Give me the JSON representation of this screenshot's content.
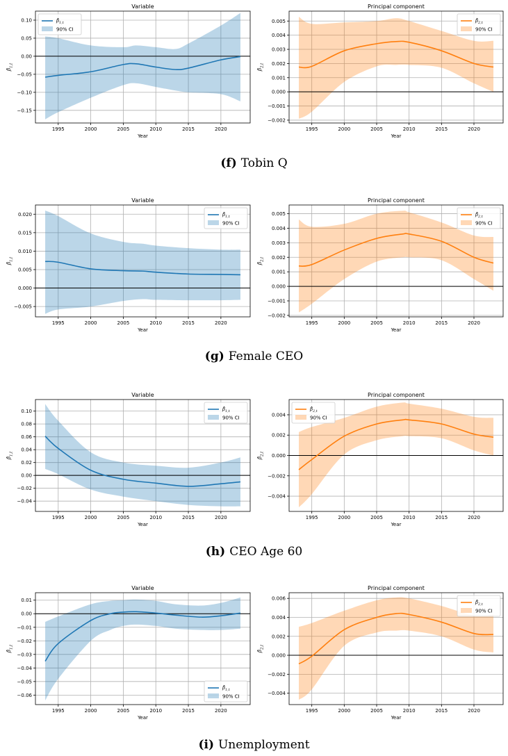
{
  "panels": [
    {
      "caption": {
        "letter": "(f)",
        "text": "Tobin Q"
      },
      "charts": [
        {
          "type": "line",
          "title": "Variable",
          "xlabel": "Year",
          "ylabel": "β̂1,t",
          "legend": "β̂1,t",
          "ci_legend": "90% CI",
          "color": "#1f77b4",
          "legend_loc": "upper-left",
          "xlim": [
            1991.5,
            2024.5
          ],
          "ylim": [
            -0.185,
            0.125
          ],
          "xticks": [
            1995,
            2000,
            2005,
            2010,
            2015,
            2020
          ],
          "yticks": [
            -0.15,
            -0.1,
            -0.05,
            0.0,
            0.05,
            0.1
          ],
          "ytick_labels": [
            "−0.15",
            "−0.10",
            "−0.05",
            "0.00",
            "0.05",
            "0.10"
          ],
          "x": [
            1993,
            1995,
            2000,
            2005,
            2007,
            2010,
            2013,
            2015,
            2020,
            2023
          ],
          "y": [
            -0.058,
            -0.053,
            -0.043,
            -0.023,
            -0.021,
            -0.03,
            -0.037,
            -0.033,
            -0.01,
            -0.001
          ],
          "lower": [
            -0.175,
            -0.155,
            -0.115,
            -0.08,
            -0.075,
            -0.085,
            -0.095,
            -0.1,
            -0.105,
            -0.125
          ],
          "upper": [
            0.055,
            0.05,
            0.03,
            0.025,
            0.03,
            0.025,
            0.02,
            0.035,
            0.085,
            0.12
          ]
        },
        {
          "type": "line",
          "title": "Principal component",
          "xlabel": "Year",
          "ylabel": "β̂2,t",
          "legend": "β̂2,t",
          "ci_legend": "90% CI",
          "color": "#ff7f0e",
          "legend_loc": "upper-right",
          "xlim": [
            1991.5,
            2024.5
          ],
          "ylim": [
            -0.0022,
            0.0057
          ],
          "xticks": [
            1995,
            2000,
            2005,
            2010,
            2015,
            2020
          ],
          "yticks": [
            -0.002,
            -0.001,
            0.0,
            0.001,
            0.002,
            0.003,
            0.004,
            0.005
          ],
          "ytick_labels": [
            "−0.002",
            "−0.001",
            "0.000",
            "0.001",
            "0.002",
            "0.003",
            "0.004",
            "0.005"
          ],
          "x": [
            1993,
            1995,
            2000,
            2005,
            2008,
            2010,
            2015,
            2020,
            2023
          ],
          "y": [
            0.00175,
            0.0018,
            0.0029,
            0.0034,
            0.00355,
            0.0035,
            0.0029,
            0.002,
            0.00175
          ],
          "lower": [
            -0.0019,
            -0.0014,
            0.0007,
            0.0018,
            0.0019,
            0.0019,
            0.0017,
            0.0006,
            0.0
          ],
          "upper": [
            0.0053,
            0.0048,
            0.0049,
            0.005,
            0.0052,
            0.005,
            0.0043,
            0.0036,
            0.0036
          ]
        }
      ]
    },
    {
      "caption": {
        "letter": "(g)",
        "text": "Female CEO"
      },
      "charts": [
        {
          "type": "line",
          "title": "Variable",
          "xlabel": "Year",
          "ylabel": "β̂1,t",
          "legend": "β̂1,t",
          "ci_legend": "90% CI",
          "color": "#1f77b4",
          "legend_loc": "upper-right",
          "xlim": [
            1991.5,
            2024.5
          ],
          "ylim": [
            -0.0078,
            0.0225
          ],
          "xticks": [
            1995,
            2000,
            2005,
            2010,
            2015,
            2020
          ],
          "yticks": [
            -0.005,
            0.0,
            0.005,
            0.01,
            0.015,
            0.02
          ],
          "ytick_labels": [
            "−0.005",
            "0.000",
            "0.005",
            "0.010",
            "0.015",
            "0.020"
          ],
          "x": [
            1993,
            1995,
            2000,
            2005,
            2008,
            2010,
            2015,
            2020,
            2023
          ],
          "y": [
            0.0072,
            0.007,
            0.0052,
            0.0047,
            0.0046,
            0.0043,
            0.0038,
            0.0037,
            0.0036
          ],
          "lower": [
            -0.007,
            -0.0058,
            -0.005,
            -0.0035,
            -0.003,
            -0.0032,
            -0.0033,
            -0.0033,
            -0.0032
          ],
          "upper": [
            0.021,
            0.0195,
            0.0148,
            0.0125,
            0.012,
            0.0115,
            0.0108,
            0.0104,
            0.0104
          ]
        },
        {
          "type": "line",
          "title": "Principal component",
          "xlabel": "Year",
          "ylabel": "β̂2,t",
          "legend": "β̂2,t",
          "ci_legend": "90% CI",
          "color": "#ff7f0e",
          "legend_loc": "upper-right",
          "xlim": [
            1991.5,
            2024.5
          ],
          "ylim": [
            -0.0021,
            0.0056
          ],
          "xticks": [
            1995,
            2000,
            2005,
            2010,
            2015,
            2020
          ],
          "yticks": [
            -0.002,
            -0.001,
            0.0,
            0.001,
            0.002,
            0.003,
            0.004,
            0.005
          ],
          "ytick_labels": [
            "−0.002",
            "−0.001",
            "0.000",
            "0.001",
            "0.002",
            "0.003",
            "0.004",
            "0.005"
          ],
          "x": [
            1993,
            1995,
            2000,
            2005,
            2009,
            2010,
            2015,
            2020,
            2023
          ],
          "y": [
            0.0014,
            0.0015,
            0.0025,
            0.0033,
            0.0036,
            0.0036,
            0.0031,
            0.002,
            0.0016
          ],
          "lower": [
            -0.0018,
            -0.0012,
            0.0005,
            0.0017,
            0.002,
            0.002,
            0.0018,
            0.0005,
            -0.0003
          ],
          "upper": [
            0.0046,
            0.0041,
            0.0043,
            0.005,
            0.0052,
            0.0051,
            0.0044,
            0.0035,
            0.0034
          ]
        }
      ]
    },
    {
      "caption": {
        "letter": "(h)",
        "text": "CEO Age 60"
      },
      "charts": [
        {
          "type": "line",
          "title": "Variable",
          "xlabel": "Year",
          "ylabel": "β̂1,t",
          "legend": "β̂1,t",
          "ci_legend": "90% CI",
          "color": "#1f77b4",
          "legend_loc": "upper-right",
          "xlim": [
            1991.5,
            2024.5
          ],
          "ylim": [
            -0.056,
            0.118
          ],
          "xticks": [
            1995,
            2000,
            2005,
            2010,
            2015,
            2020
          ],
          "yticks": [
            -0.04,
            -0.02,
            0.0,
            0.02,
            0.04,
            0.06,
            0.08,
            0.1
          ],
          "ytick_labels": [
            "−0.04",
            "−0.02",
            "0.00",
            "0.02",
            "0.04",
            "0.06",
            "0.08",
            "0.10"
          ],
          "x": [
            1993,
            1995,
            2000,
            2005,
            2010,
            2015,
            2020,
            2023
          ],
          "y": [
            0.061,
            0.042,
            0.008,
            -0.006,
            -0.012,
            -0.017,
            -0.013,
            -0.01
          ],
          "lower": [
            0.01,
            0.002,
            -0.022,
            -0.033,
            -0.04,
            -0.046,
            -0.048,
            -0.048
          ],
          "upper": [
            0.111,
            0.085,
            0.036,
            0.02,
            0.015,
            0.012,
            0.02,
            0.028
          ]
        },
        {
          "type": "line",
          "title": "Principal component",
          "xlabel": "Year",
          "ylabel": "β̂2,t",
          "legend": "β̂2,t",
          "ci_legend": "90% CI",
          "color": "#ff7f0e",
          "legend_loc": "upper-left",
          "xlim": [
            1991.5,
            2024.5
          ],
          "ylim": [
            -0.0055,
            0.0055
          ],
          "xticks": [
            1995,
            2000,
            2005,
            2010,
            2015,
            2020
          ],
          "yticks": [
            -0.004,
            -0.002,
            0.0,
            0.002,
            0.004
          ],
          "ytick_labels": [
            "−0.004",
            "−0.002",
            "0.000",
            "0.002",
            "0.004"
          ],
          "x": [
            1993,
            1995,
            2000,
            2005,
            2009,
            2010,
            2015,
            2020,
            2023
          ],
          "y": [
            -0.0014,
            -0.0004,
            0.0019,
            0.0031,
            0.0035,
            0.0035,
            0.0031,
            0.0021,
            0.0018
          ],
          "lower": [
            -0.0051,
            -0.0038,
            0.0001,
            0.0015,
            0.0019,
            0.0019,
            0.0017,
            0.0005,
            0.0
          ],
          "upper": [
            0.0023,
            0.0028,
            0.0037,
            0.0048,
            0.0052,
            0.0051,
            0.0046,
            0.0038,
            0.0037
          ]
        }
      ]
    },
    {
      "caption": {
        "letter": "(i)",
        "text": "Unemployment"
      },
      "charts": [
        {
          "type": "line",
          "title": "Variable",
          "xlabel": "Year",
          "ylabel": "β̂1,t",
          "legend": "β̂1,t",
          "ci_legend": "90% CI",
          "color": "#1f77b4",
          "legend_loc": "lower-right",
          "xlim": [
            1991.5,
            2024.5
          ],
          "ylim": [
            -0.067,
            0.0155
          ],
          "xticks": [
            1995,
            2000,
            2005,
            2010,
            2015,
            2020
          ],
          "yticks": [
            -0.06,
            -0.05,
            -0.04,
            -0.03,
            -0.02,
            -0.01,
            0.0,
            0.01
          ],
          "ytick_labels": [
            "−0.06",
            "−0.05",
            "−0.04",
            "−0.03",
            "−0.02",
            "−0.01",
            "0.00",
            "0.01"
          ],
          "x": [
            1993,
            1995,
            2000,
            2003,
            2005,
            2007,
            2010,
            2013,
            2017,
            2020,
            2023
          ],
          "y": [
            -0.035,
            -0.022,
            -0.005,
            0.0,
            0.0012,
            0.0015,
            0.0005,
            -0.001,
            -0.0025,
            -0.0015,
            0.0005
          ],
          "lower": [
            -0.064,
            -0.048,
            -0.02,
            -0.012,
            -0.009,
            -0.008,
            -0.009,
            -0.011,
            -0.012,
            -0.012,
            -0.011
          ],
          "upper": [
            -0.006,
            -0.002,
            0.007,
            0.0095,
            0.01,
            0.0105,
            0.0095,
            0.007,
            0.006,
            0.008,
            0.012
          ]
        },
        {
          "type": "line",
          "title": "Principal component",
          "xlabel": "Year",
          "ylabel": "β̂2,t",
          "legend": "β̂2,t",
          "ci_legend": "90% CI",
          "color": "#ff7f0e",
          "legend_loc": "upper-right",
          "xlim": [
            1991.5,
            2024.5
          ],
          "ylim": [
            -0.0052,
            0.0066
          ],
          "xticks": [
            1995,
            2000,
            2005,
            2010,
            2015,
            2020
          ],
          "yticks": [
            -0.004,
            -0.002,
            0.0,
            0.002,
            0.004,
            0.006
          ],
          "ytick_labels": [
            "−0.004",
            "−0.002",
            "0.000",
            "0.002",
            "0.004",
            "0.006"
          ],
          "x": [
            1993,
            1995,
            2000,
            2005,
            2008,
            2010,
            2015,
            2020,
            2023
          ],
          "y": [
            -0.0009,
            -0.0001,
            0.0027,
            0.004,
            0.0044,
            0.0043,
            0.0035,
            0.0023,
            0.0022
          ],
          "lower": [
            -0.0047,
            -0.0036,
            0.001,
            0.0024,
            0.0026,
            0.0026,
            0.002,
            0.0006,
            0.0003
          ],
          "upper": [
            0.003,
            0.0034,
            0.0047,
            0.0058,
            0.0061,
            0.006,
            0.0052,
            0.0042,
            0.0043
          ]
        }
      ]
    }
  ]
}
